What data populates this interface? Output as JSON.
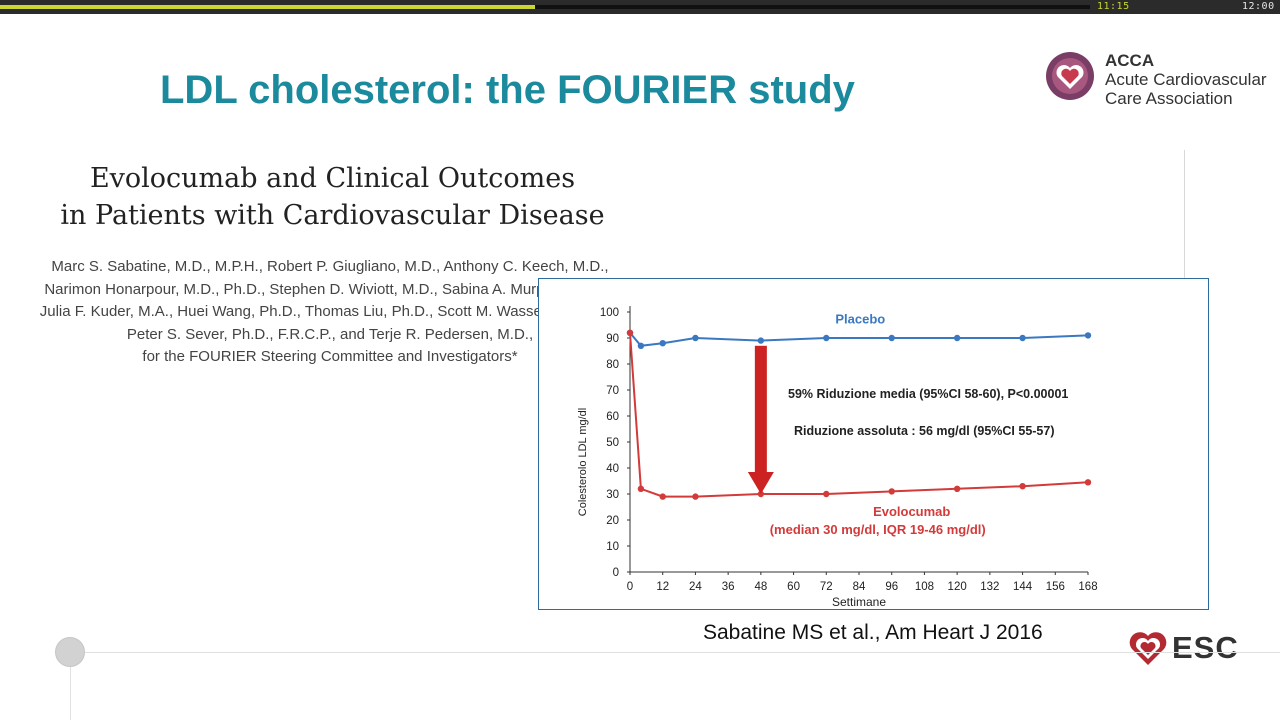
{
  "player": {
    "elapsed": "11:15",
    "total": "12:00",
    "progress_fraction": 0.4906
  },
  "slide": {
    "title": "LDL cholesterol: the FOURIER study",
    "citation": "Sabatine MS et al., Am Heart J 2016"
  },
  "acca": {
    "abbr": "ACCA",
    "line1": "Acute Cardiovascular",
    "line2": "Care Association"
  },
  "esc": {
    "text": "ESC"
  },
  "paper": {
    "title_lines": [
      "Evolocumab and Clinical Outcomes",
      "in Patients with Cardiovascular Disease"
    ],
    "author_lines": [
      "Marc S. Sabatine, M.D., M.P.H., Robert P. Giugliano, M.D., Anthony C. Keech, M.D.,",
      "Narimon Honarpour, M.D., Ph.D., Stephen D. Wiviott, M.D., Sabina A. Murphy, M.P.H.,",
      "Julia F. Kuder, M.A., Huei Wang, Ph.D., Thomas Liu, Ph.D., Scott M. Wasserman, M.D.,",
      "Peter S. Sever, Ph.D., F.R.C.P., and Terje R. Pedersen, M.D.,",
      "for the FOURIER Steering Committee and Investigators*"
    ]
  },
  "chart_data": {
    "type": "line",
    "xlabel": "Settimane",
    "ylabel": "Colesterolo LDL mg/dl",
    "xlim": [
      0,
      168
    ],
    "ylim": [
      0,
      100
    ],
    "x_ticks": [
      0,
      12,
      24,
      36,
      48,
      60,
      72,
      84,
      96,
      108,
      120,
      132,
      144,
      156,
      168
    ],
    "y_ticks": [
      0,
      10,
      20,
      30,
      40,
      50,
      60,
      70,
      80,
      90,
      100
    ],
    "series": [
      {
        "name": "Placebo",
        "color": "#3a78c2",
        "x": [
          0,
          4,
          12,
          24,
          48,
          72,
          96,
          120,
          144,
          168
        ],
        "y": [
          92,
          87,
          88,
          90,
          89,
          90,
          90,
          90,
          90,
          91
        ]
      },
      {
        "name": "Evolocumab",
        "sublabel": "(median 30 mg/dl, IQR 19-46 mg/dl)",
        "color": "#d33a3a",
        "x": [
          0,
          4,
          12,
          24,
          48,
          72,
          96,
          120,
          144,
          168
        ],
        "y": [
          92,
          32,
          29,
          29,
          30,
          30,
          31,
          32,
          33,
          34.5
        ]
      }
    ],
    "annotations": {
      "line1_pct": "59%",
      "line1_label": "Riduzione media",
      "line1_ci": "(95%CI 58-60), P<0.00001",
      "line2_label": "Riduzione assoluta",
      "line2_value": ": 56 mg/dl (95%CI 55-57)",
      "arrow_from_y": 87,
      "arrow_to_y": 30,
      "arrow_x": 48
    },
    "arrow_color": "#cc2222"
  }
}
